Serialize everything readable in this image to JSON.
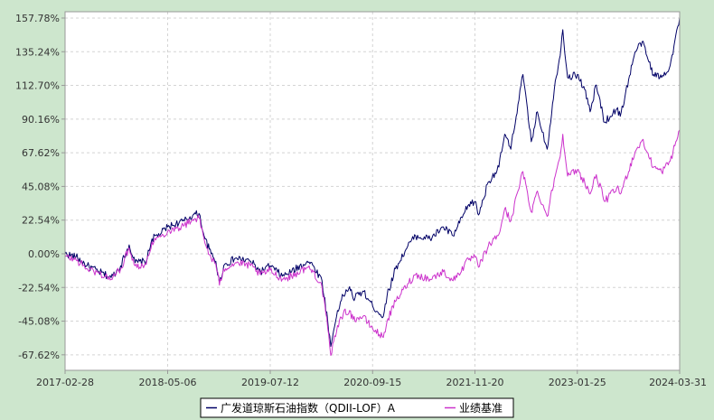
{
  "chart_data": {
    "type": "line",
    "x_ticks": [
      "2017-02-28",
      "2018-05-06",
      "2019-07-12",
      "2020-09-15",
      "2021-11-20",
      "2023-01-25",
      "2024-03-31"
    ],
    "y_ticks": [
      "157.78%",
      "135.24%",
      "112.70%",
      "90.16%",
      "67.62%",
      "45.08%",
      "22.54%",
      "0.00%",
      "-22.54%",
      "-45.08%",
      "-67.62%"
    ],
    "y_tick_values": [
      157.78,
      135.24,
      112.7,
      90.16,
      67.62,
      45.08,
      22.54,
      0,
      -22.54,
      -45.08,
      -67.62
    ],
    "xlim": [
      "2017-02-28",
      "2024-03-31"
    ],
    "ylim": [
      -78,
      162
    ],
    "grid": true,
    "legend_position": "bottom-center",
    "series": [
      {
        "name": "广发道琼斯石油指数（QDII-LOF）A",
        "color": "#000066",
        "points": [
          [
            "2017-02-28",
            0
          ],
          [
            "2017-04-15",
            -2
          ],
          [
            "2017-06-01",
            -8
          ],
          [
            "2017-07-20",
            -12
          ],
          [
            "2017-09-10",
            -16
          ],
          [
            "2017-10-20",
            -8
          ],
          [
            "2017-11-25",
            6
          ],
          [
            "2017-12-20",
            -6
          ],
          [
            "2018-02-05",
            -5
          ],
          [
            "2018-03-01",
            10
          ],
          [
            "2018-04-10",
            14
          ],
          [
            "2018-05-06",
            18
          ],
          [
            "2018-06-10",
            20
          ],
          [
            "2018-07-15",
            22
          ],
          [
            "2018-08-20",
            26
          ],
          [
            "2018-09-15",
            27
          ],
          [
            "2018-10-10",
            10
          ],
          [
            "2018-11-05",
            0
          ],
          [
            "2018-11-25",
            -5
          ],
          [
            "2018-12-10",
            -20
          ],
          [
            "2018-12-28",
            -8
          ],
          [
            "2019-02-15",
            -3
          ],
          [
            "2019-04-20",
            -5
          ],
          [
            "2019-06-01",
            -12
          ],
          [
            "2019-07-12",
            -8
          ],
          [
            "2019-09-01",
            -15
          ],
          [
            "2019-10-10",
            -12
          ],
          [
            "2019-12-15",
            -5
          ],
          [
            "2020-01-10",
            -8
          ],
          [
            "2020-02-15",
            -18
          ],
          [
            "2020-03-10",
            -45
          ],
          [
            "2020-03-23",
            -62
          ],
          [
            "2020-04-20",
            -38
          ],
          [
            "2020-05-15",
            -28
          ],
          [
            "2020-06-10",
            -22
          ],
          [
            "2020-06-25",
            -30
          ],
          [
            "2020-08-05",
            -25
          ],
          [
            "2020-09-15",
            -35
          ],
          [
            "2020-10-30",
            -42
          ],
          [
            "2020-11-15",
            -28
          ],
          [
            "2020-12-20",
            -10
          ],
          [
            "2021-02-10",
            5
          ],
          [
            "2021-03-15",
            12
          ],
          [
            "2021-05-15",
            10
          ],
          [
            "2021-07-10",
            18
          ],
          [
            "2021-08-20",
            12
          ],
          [
            "2021-10-25",
            33
          ],
          [
            "2021-11-20",
            35
          ],
          [
            "2021-12-05",
            26
          ],
          [
            "2022-01-15",
            48
          ],
          [
            "2022-03-01",
            58
          ],
          [
            "2022-03-25",
            80
          ],
          [
            "2022-04-20",
            70
          ],
          [
            "2022-05-20",
            100
          ],
          [
            "2022-06-10",
            120
          ],
          [
            "2022-07-15",
            75
          ],
          [
            "2022-08-10",
            95
          ],
          [
            "2022-09-20",
            70
          ],
          [
            "2022-10-20",
            110
          ],
          [
            "2022-11-10",
            130
          ],
          [
            "2022-11-25",
            150
          ],
          [
            "2022-12-15",
            118
          ],
          [
            "2023-01-25",
            120
          ],
          [
            "2023-02-25",
            110
          ],
          [
            "2023-03-20",
            95
          ],
          [
            "2023-04-15",
            113
          ],
          [
            "2023-05-20",
            88
          ],
          [
            "2023-07-10",
            97
          ],
          [
            "2023-07-25",
            92
          ],
          [
            "2023-09-25",
            135
          ],
          [
            "2023-10-25",
            142
          ],
          [
            "2023-11-15",
            132
          ],
          [
            "2023-12-12",
            120
          ],
          [
            "2024-01-15",
            118
          ],
          [
            "2024-02-20",
            126
          ],
          [
            "2024-03-31",
            158
          ]
        ]
      },
      {
        "name": "业绩基准",
        "color": "#cc33cc",
        "points": [
          [
            "2017-02-28",
            -2
          ],
          [
            "2017-04-15",
            -4
          ],
          [
            "2017-06-01",
            -10
          ],
          [
            "2017-07-20",
            -13
          ],
          [
            "2017-09-10",
            -17
          ],
          [
            "2017-10-20",
            -10
          ],
          [
            "2017-11-25",
            4
          ],
          [
            "2017-12-20",
            -8
          ],
          [
            "2018-02-05",
            -7
          ],
          [
            "2018-03-01",
            8
          ],
          [
            "2018-04-10",
            12
          ],
          [
            "2018-05-06",
            15
          ],
          [
            "2018-06-10",
            17
          ],
          [
            "2018-07-15",
            19
          ],
          [
            "2018-08-20",
            23
          ],
          [
            "2018-09-15",
            24
          ],
          [
            "2018-10-10",
            7
          ],
          [
            "2018-11-05",
            -3
          ],
          [
            "2018-11-25",
            -7
          ],
          [
            "2018-12-10",
            -21
          ],
          [
            "2018-12-28",
            -10
          ],
          [
            "2019-02-15",
            -6
          ],
          [
            "2019-04-20",
            -8
          ],
          [
            "2019-06-01",
            -14
          ],
          [
            "2019-07-12",
            -11
          ],
          [
            "2019-09-01",
            -17
          ],
          [
            "2019-10-10",
            -15
          ],
          [
            "2019-12-15",
            -9
          ],
          [
            "2020-01-10",
            -12
          ],
          [
            "2020-02-15",
            -22
          ],
          [
            "2020-03-10",
            -50
          ],
          [
            "2020-03-23",
            -68
          ],
          [
            "2020-04-20",
            -48
          ],
          [
            "2020-05-15",
            -40
          ],
          [
            "2020-06-10",
            -38
          ],
          [
            "2020-06-25",
            -44
          ],
          [
            "2020-08-05",
            -42
          ],
          [
            "2020-09-15",
            -50
          ],
          [
            "2020-10-30",
            -56
          ],
          [
            "2020-11-15",
            -45
          ],
          [
            "2020-12-20",
            -32
          ],
          [
            "2021-02-10",
            -20
          ],
          [
            "2021-03-15",
            -14
          ],
          [
            "2021-05-15",
            -17
          ],
          [
            "2021-07-10",
            -12
          ],
          [
            "2021-08-20",
            -18
          ],
          [
            "2021-10-25",
            -4
          ],
          [
            "2021-11-20",
            -2
          ],
          [
            "2021-12-05",
            -9
          ],
          [
            "2022-01-15",
            5
          ],
          [
            "2022-03-01",
            13
          ],
          [
            "2022-03-25",
            30
          ],
          [
            "2022-04-20",
            22
          ],
          [
            "2022-05-20",
            42
          ],
          [
            "2022-06-10",
            55
          ],
          [
            "2022-07-15",
            28
          ],
          [
            "2022-08-10",
            42
          ],
          [
            "2022-09-20",
            25
          ],
          [
            "2022-10-20",
            50
          ],
          [
            "2022-11-10",
            63
          ],
          [
            "2022-11-25",
            80
          ],
          [
            "2022-12-15",
            52
          ],
          [
            "2023-01-25",
            56
          ],
          [
            "2023-02-25",
            48
          ],
          [
            "2023-03-20",
            40
          ],
          [
            "2023-04-15",
            53
          ],
          [
            "2023-05-20",
            35
          ],
          [
            "2023-07-10",
            44
          ],
          [
            "2023-07-25",
            40
          ],
          [
            "2023-09-25",
            68
          ],
          [
            "2023-10-25",
            76
          ],
          [
            "2023-11-15",
            68
          ],
          [
            "2023-12-12",
            58
          ],
          [
            "2024-01-15",
            55
          ],
          [
            "2024-02-20",
            62
          ],
          [
            "2024-03-31",
            83
          ]
        ]
      }
    ]
  }
}
